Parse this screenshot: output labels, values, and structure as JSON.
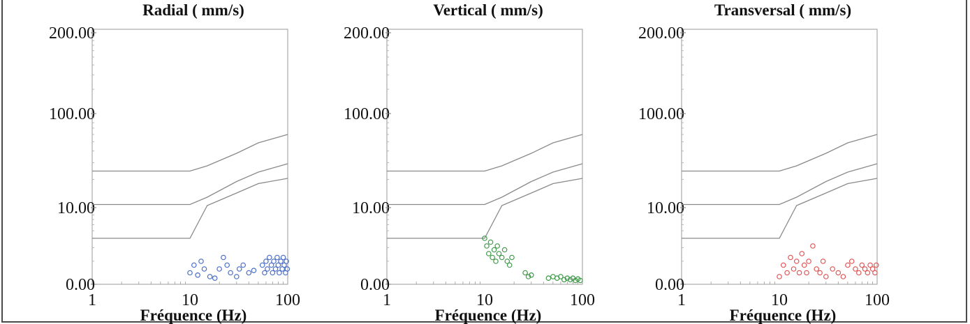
{
  "chart_data": [
    {
      "type": "scatter",
      "title": "Radial ( mm/s)",
      "xlabel": "Fréquence (Hz)",
      "x_scale": "log",
      "xlim": [
        1,
        100
      ],
      "ylim": [
        0,
        200
      ],
      "x_ticks": [
        "1",
        "10",
        "100"
      ],
      "y_ticks": [
        "0.00",
        "10.00",
        "100.00",
        "200.00"
      ],
      "color": "#4a6fc7",
      "limit_lines": [
        {
          "x": [
            1,
            10,
            15,
            30,
            50,
            100
          ],
          "y": [
            45,
            45,
            50,
            62,
            72,
            80
          ]
        },
        {
          "x": [
            1,
            10,
            15,
            30,
            50,
            100
          ],
          "y": [
            13,
            13,
            20,
            35,
            44,
            52
          ]
        },
        {
          "x": [
            1,
            10,
            15,
            30,
            50,
            100
          ],
          "y": [
            6,
            6,
            12,
            24,
            33,
            38
          ]
        }
      ],
      "points": [
        [
          10,
          1.5
        ],
        [
          11,
          2.5
        ],
        [
          12,
          1.2
        ],
        [
          13,
          3.0
        ],
        [
          14,
          2.0
        ],
        [
          16,
          1.0
        ],
        [
          18,
          0.8
        ],
        [
          20,
          2.0
        ],
        [
          22,
          3.5
        ],
        [
          24,
          2.5
        ],
        [
          26,
          1.5
        ],
        [
          30,
          1.0
        ],
        [
          32,
          2.0
        ],
        [
          35,
          2.5
        ],
        [
          40,
          1.5
        ],
        [
          45,
          1.8
        ],
        [
          55,
          2.5
        ],
        [
          58,
          1.5
        ],
        [
          60,
          3.0
        ],
        [
          62,
          2.0
        ],
        [
          65,
          3.5
        ],
        [
          68,
          2.5
        ],
        [
          70,
          1.5
        ],
        [
          72,
          3.0
        ],
        [
          75,
          2.0
        ],
        [
          78,
          3.5
        ],
        [
          80,
          2.5
        ],
        [
          82,
          1.5
        ],
        [
          85,
          3.0
        ],
        [
          88,
          2.0
        ],
        [
          90,
          3.5
        ],
        [
          92,
          2.5
        ],
        [
          95,
          1.5
        ],
        [
          97,
          3.0
        ],
        [
          99,
          2.0
        ]
      ]
    },
    {
      "type": "scatter",
      "title": "Vertical ( mm/s)",
      "xlabel": "Fréquence (Hz)",
      "x_scale": "log",
      "xlim": [
        1,
        100
      ],
      "ylim": [
        0,
        200
      ],
      "x_ticks": [
        "1",
        "10",
        "100"
      ],
      "y_ticks": [
        "0.00",
        "10.00",
        "100.00",
        "200.00"
      ],
      "color": "#3f9a4a",
      "limit_lines": [
        {
          "x": [
            1,
            10,
            15,
            30,
            50,
            100
          ],
          "y": [
            45,
            45,
            50,
            62,
            72,
            80
          ]
        },
        {
          "x": [
            1,
            10,
            15,
            30,
            50,
            100
          ],
          "y": [
            13,
            13,
            20,
            35,
            44,
            52
          ]
        },
        {
          "x": [
            1,
            10,
            15,
            30,
            50,
            100
          ],
          "y": [
            6,
            6,
            12,
            24,
            33,
            38
          ]
        }
      ],
      "points": [
        [
          10,
          6.0
        ],
        [
          10.5,
          5.0
        ],
        [
          11,
          4.0
        ],
        [
          11.5,
          5.5
        ],
        [
          12,
          3.5
        ],
        [
          12.5,
          4.5
        ],
        [
          13,
          3.0
        ],
        [
          13.5,
          5.0
        ],
        [
          14,
          4.0
        ],
        [
          15,
          3.5
        ],
        [
          16,
          4.5
        ],
        [
          17,
          3.0
        ],
        [
          18,
          2.5
        ],
        [
          19,
          3.5
        ],
        [
          26,
          1.5
        ],
        [
          28,
          1.0
        ],
        [
          30,
          1.2
        ],
        [
          45,
          0.8
        ],
        [
          50,
          1.0
        ],
        [
          55,
          0.8
        ],
        [
          60,
          1.0
        ],
        [
          65,
          0.6
        ],
        [
          70,
          0.8
        ],
        [
          75,
          0.6
        ],
        [
          80,
          0.8
        ],
        [
          85,
          0.5
        ],
        [
          90,
          0.7
        ],
        [
          95,
          0.5
        ]
      ]
    },
    {
      "type": "scatter",
      "title": "Transversal ( mm/s)",
      "xlabel": "Fréquence (Hz)",
      "x_scale": "log",
      "xlim": [
        1,
        100
      ],
      "ylim": [
        0,
        200
      ],
      "x_ticks": [
        "1",
        "10",
        "100"
      ],
      "y_ticks": [
        "0.00",
        "10.00",
        "100.00",
        "200.00"
      ],
      "color": "#e05555",
      "limit_lines": [
        {
          "x": [
            1,
            10,
            15,
            30,
            50,
            100
          ],
          "y": [
            45,
            45,
            50,
            62,
            72,
            80
          ]
        },
        {
          "x": [
            1,
            10,
            15,
            30,
            50,
            100
          ],
          "y": [
            13,
            13,
            20,
            35,
            44,
            52
          ]
        },
        {
          "x": [
            1,
            10,
            15,
            30,
            50,
            100
          ],
          "y": [
            6,
            6,
            12,
            24,
            33,
            38
          ]
        }
      ],
      "points": [
        [
          10,
          1.0
        ],
        [
          11,
          2.5
        ],
        [
          12,
          1.5
        ],
        [
          13,
          3.5
        ],
        [
          14,
          2.0
        ],
        [
          15,
          3.0
        ],
        [
          16,
          1.5
        ],
        [
          17,
          4.0
        ],
        [
          18,
          2.5
        ],
        [
          19,
          1.5
        ],
        [
          20,
          3.0
        ],
        [
          22,
          5.0
        ],
        [
          24,
          2.0
        ],
        [
          26,
          1.5
        ],
        [
          28,
          3.0
        ],
        [
          30,
          1.0
        ],
        [
          35,
          2.0
        ],
        [
          40,
          1.5
        ],
        [
          45,
          1.0
        ],
        [
          50,
          2.5
        ],
        [
          55,
          3.0
        ],
        [
          60,
          2.0
        ],
        [
          65,
          1.5
        ],
        [
          70,
          2.5
        ],
        [
          75,
          2.0
        ],
        [
          80,
          1.5
        ],
        [
          85,
          2.5
        ],
        [
          90,
          2.0
        ],
        [
          95,
          1.5
        ],
        [
          98,
          2.5
        ]
      ]
    }
  ]
}
